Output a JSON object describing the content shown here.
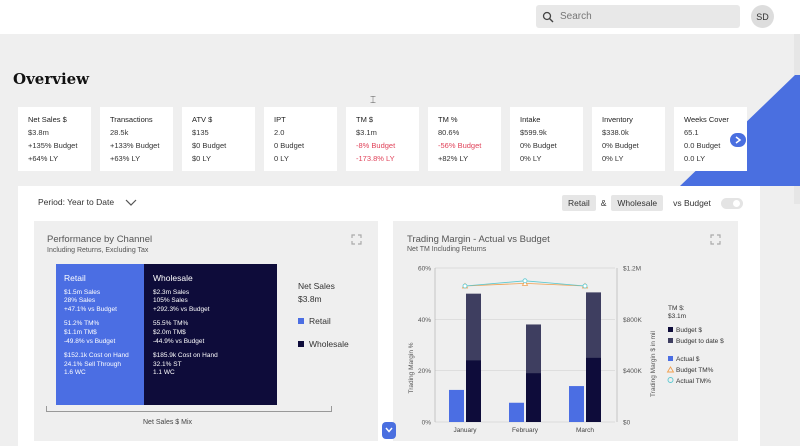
{
  "header": {
    "search_placeholder": "Search",
    "avatar_initials": "SD"
  },
  "page": {
    "title": "Overview"
  },
  "colors": {
    "accent": "#4a6fe0",
    "retail": "#4b6ee3",
    "wholesale": "#0e0c3a",
    "negative": "#e0435a",
    "budget_line": "#f0a050",
    "actual_line": "#5ac8d0"
  },
  "kpis": [
    {
      "title": "Net Sales $",
      "value": "$3.8m",
      "budget": "+135% Budget",
      "ly": "+64% LY"
    },
    {
      "title": "Transactions",
      "value": "28.5k",
      "budget": "+133% Budget",
      "ly": "+63% LY"
    },
    {
      "title": "ATV $",
      "value": "$135",
      "budget": "$0 Budget",
      "ly": "$0 LY"
    },
    {
      "title": "IPT",
      "value": "2.0",
      "budget": "0 Budget",
      "ly": "0 LY"
    },
    {
      "title": "TM $",
      "value": "$3.1m",
      "budget": "-8% Budget",
      "ly": "-173.8% LY"
    },
    {
      "title": "TM %",
      "value": "80.6%",
      "budget": "-56% Budget",
      "ly": "+82% LY"
    },
    {
      "title": "Intake",
      "value": "$599.9k",
      "budget": "0% Budget",
      "ly": "0% LY"
    },
    {
      "title": "Inventory",
      "value": "$338.0k",
      "budget": "0% Budget",
      "ly": "0% LY"
    },
    {
      "title": "Weeks Cover",
      "value": "65.1",
      "budget": "0.0 Budget",
      "ly": "0.0 LY"
    }
  ],
  "filters": {
    "period": "Period: Year to Date",
    "retail": "Retail",
    "amp": "&",
    "wholesale": "Wholesale",
    "vs_budget": "vs Budget"
  },
  "channel_panel": {
    "title": "Performance by Channel",
    "subtitle": "Including Returns, Excluding Tax",
    "retail": {
      "label": "Retail",
      "lines_a": [
        "$1.5m Sales",
        "28% Sales",
        "+47.1% vs Budget"
      ],
      "lines_b": [
        "51.2% TM%",
        "$1.1m TM$",
        "-49.8% vs Budget"
      ],
      "lines_c": [
        "$152.1k Cost on Hand",
        "24.1% Sell Through",
        "1.6 WC"
      ]
    },
    "wholesale": {
      "label": "Wholesale",
      "lines_a": [
        "$2.3m Sales",
        "105% Sales",
        "+292.3% vs Budget"
      ],
      "lines_b": [
        "55.5% TM%",
        "$2.0m TM$",
        "-44.9% vs Budget"
      ],
      "lines_c": [
        "$185.9k Cost on Hand",
        "32.1% ST",
        "1.1 WC"
      ]
    },
    "legend_title": "Net Sales",
    "legend_value": "$3.8m",
    "legend_items": [
      "Retail",
      "Wholesale"
    ],
    "mix_label": "Net Sales $ Mix"
  },
  "margin_panel": {
    "title": "Trading Margin - Actual vs Budget",
    "subtitle": "Net TM Including Returns",
    "left_axis_label": "Trading Margin %",
    "right_axis_label": "Trading Margin $ in mil",
    "tm_label": "TM $:",
    "tm_value": "$3.1m",
    "legend": [
      "Budget $",
      "Budget to date $",
      "Actual $",
      "Budget TM%",
      "Actual TM%"
    ]
  },
  "chart_data": {
    "type": "bar",
    "title": "Trading Margin - Actual vs Budget",
    "subtitle": "Net TM Including Returns",
    "categories": [
      "January",
      "February",
      "March"
    ],
    "y_left": {
      "label": "Trading Margin %",
      "ticks": [
        "0%",
        "20%",
        "40%",
        "60%"
      ],
      "lim": [
        0,
        60
      ]
    },
    "y_right": {
      "label": "Trading Margin $ in mil",
      "ticks": [
        "$0",
        "$400K",
        "$800K",
        "$1.2M"
      ],
      "lim": [
        0,
        1200000
      ]
    },
    "series": [
      {
        "name": "Actual $",
        "kind": "bar",
        "axis": "right",
        "values": [
          250000,
          150000,
          280000
        ]
      },
      {
        "name": "Budget $",
        "kind": "bar",
        "axis": "right",
        "values": [
          480000,
          380000,
          500000
        ]
      },
      {
        "name": "Budget to date $",
        "kind": "bar",
        "axis": "right",
        "values": [
          1000000,
          760000,
          1010000
        ]
      },
      {
        "name": "Budget TM%",
        "kind": "line",
        "axis": "left",
        "values": [
          53,
          54,
          53
        ]
      },
      {
        "name": "Actual TM%",
        "kind": "line",
        "axis": "left",
        "values": [
          53,
          55,
          53
        ]
      }
    ]
  }
}
